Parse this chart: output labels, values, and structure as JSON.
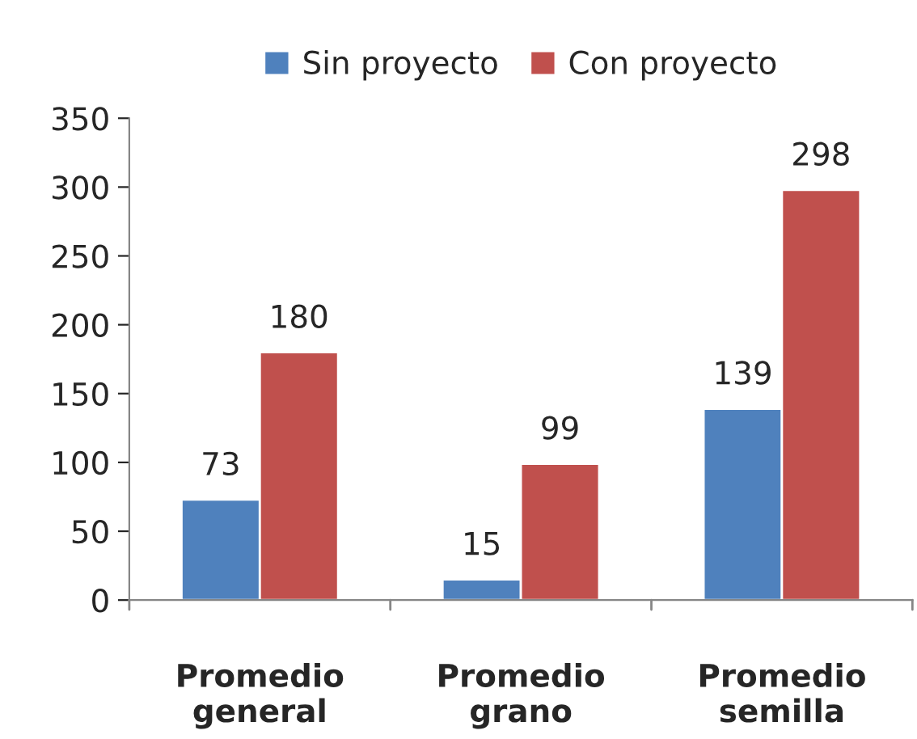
{
  "chart_data": {
    "type": "bar",
    "categories": [
      "Promedio\ngeneral",
      "Promedio\ngrano",
      "Promedio\nsemilla"
    ],
    "series": [
      {
        "name": "Sin proyecto",
        "color": "#4f81bd",
        "values": [
          73,
          15,
          139
        ]
      },
      {
        "name": "Con proyecto",
        "color": "#c0504d",
        "values": [
          180,
          99,
          298
        ]
      }
    ],
    "ylim": [
      0,
      350
    ],
    "yticks": [
      0,
      50,
      100,
      150,
      200,
      250,
      300,
      350
    ],
    "data_labels": true,
    "grid": false,
    "legend": "top"
  }
}
